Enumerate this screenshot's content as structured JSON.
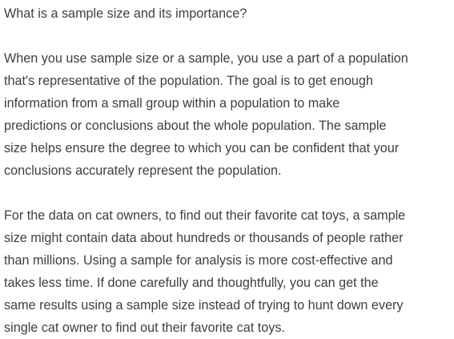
{
  "question": "What is a sample size and its importance?",
  "paragraphs": [
    {
      "lines": [
        "When you use sample size or a sample, you use a part of a population",
        "that's representative of the population. The goal is to get enough",
        "information from a small group within a population to make",
        "predictions or conclusions about the whole population. The sample",
        "size helps ensure the degree to which you can be confident that your",
        "conclusions accurately represent the population."
      ]
    },
    {
      "lines": [
        "For the data on cat owners, to find out their favorite cat toys, a sample",
        "size might contain data about hundreds or thousands of people rather",
        "than millions. Using a sample for analysis is more cost-effective and",
        "takes less time. If done carefully and thoughtfully, you can get the",
        "same results using a sample size instead of trying to hunt down every",
        "single cat owner to find out their favorite cat toys."
      ]
    }
  ]
}
